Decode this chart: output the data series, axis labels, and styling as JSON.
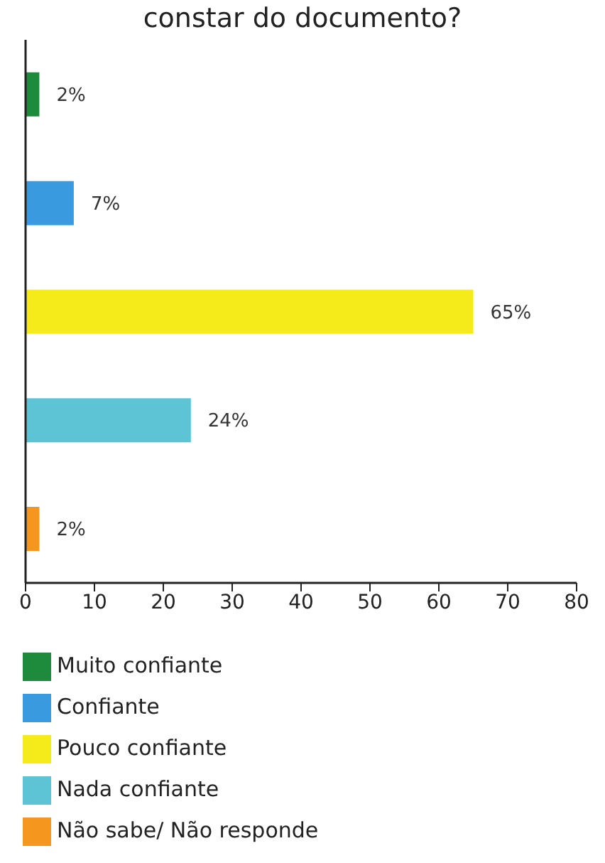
{
  "chart_data": {
    "type": "bar",
    "orientation": "horizontal",
    "stacked": true,
    "title": "constar do documento?",
    "categories": [
      null,
      null,
      null,
      null,
      null
    ],
    "series": [
      {
        "name": "Muito confiante",
        "color": "#1e8a3c",
        "values": [
          2,
          null,
          null,
          null,
          null
        ],
        "value_labels": [
          "2%",
          null,
          null,
          null,
          null
        ]
      },
      {
        "name": "Confiante",
        "color": "#3a9ae0",
        "values": [
          null,
          7,
          null,
          null,
          null
        ],
        "value_labels": [
          null,
          "7%",
          null,
          null,
          null
        ]
      },
      {
        "name": "Pouco confiante",
        "color": "#f5ea1a",
        "values": [
          null,
          null,
          65,
          null,
          null
        ],
        "value_labels": [
          null,
          null,
          "65%",
          null,
          null
        ]
      },
      {
        "name": "Nada confiante",
        "color": "#5cc4d4",
        "values": [
          null,
          null,
          null,
          24,
          null
        ],
        "value_labels": [
          null,
          null,
          null,
          "24%",
          null
        ]
      },
      {
        "name": "Não sabe/ Não responde",
        "color": "#f5961e",
        "values": [
          null,
          null,
          null,
          null,
          2
        ],
        "value_labels": [
          null,
          null,
          null,
          null,
          "2%"
        ]
      }
    ],
    "xlim": [
      0,
      80
    ],
    "xticks": [
      0,
      10,
      20,
      30,
      40,
      50,
      60,
      70,
      80
    ],
    "tick_labels": "x",
    "grid": false,
    "legend": "bottom"
  }
}
